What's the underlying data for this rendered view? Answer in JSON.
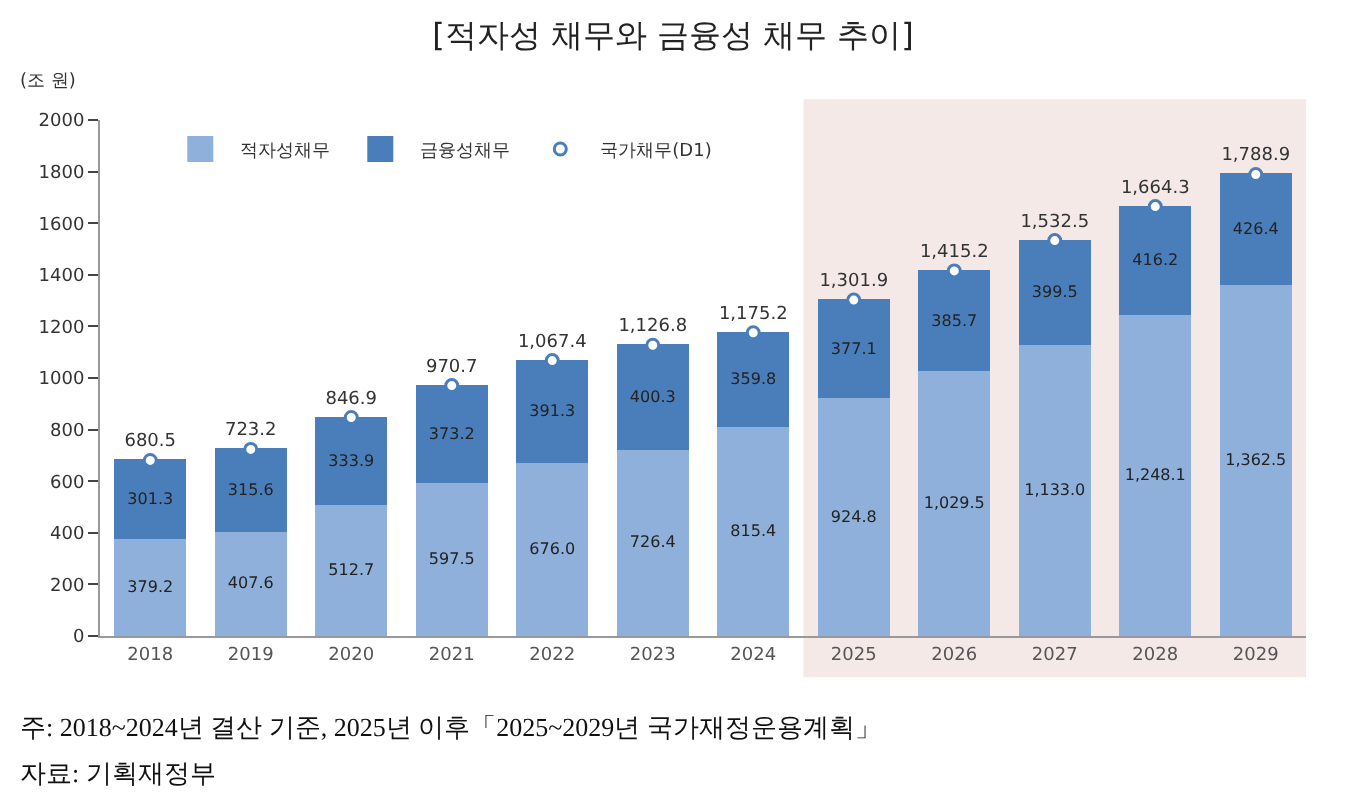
{
  "chart_data": {
    "type": "bar",
    "title": "[적자성 채무와 금융성 채무 추이]",
    "ylabel": "(조 원)",
    "categories": [
      "2018",
      "2019",
      "2020",
      "2021",
      "2022",
      "2023",
      "2024",
      "2025",
      "2026",
      "2027",
      "2028",
      "2029"
    ],
    "stacked": true,
    "series": [
      {
        "name": "적자성채무",
        "color": "#8fb0db",
        "values": [
          379.2,
          407.6,
          512.7,
          597.5,
          676.0,
          726.4,
          815.4,
          924.8,
          1029.5,
          1133.0,
          1248.1,
          1362.5
        ],
        "value_labels": [
          "379.2",
          "407.6",
          "512.7",
          "597.5",
          "676.0",
          "726.4",
          "815.4",
          "924.8",
          "1,029.5",
          "1,133.0",
          "1,248.1",
          "1,362.5"
        ]
      },
      {
        "name": "금융성채무",
        "color": "#4a7ebb",
        "values": [
          301.3,
          315.6,
          333.9,
          373.2,
          391.3,
          400.3,
          359.8,
          377.1,
          385.7,
          399.5,
          416.2,
          426.4
        ],
        "value_labels": [
          "301.3",
          "315.6",
          "333.9",
          "373.2",
          "391.3",
          "400.3",
          "359.8",
          "377.1",
          "385.7",
          "399.5",
          "416.2",
          "426.4"
        ]
      },
      {
        "name": "국가채무(D1)",
        "type": "scatter",
        "marker": "circle",
        "color": "#4a7ebb",
        "values": [
          680.5,
          723.2,
          846.9,
          970.7,
          1067.4,
          1126.8,
          1175.2,
          1301.9,
          1415.2,
          1532.5,
          1664.3,
          1788.9
        ],
        "value_labels": [
          "680.5",
          "723.2",
          "846.9",
          "970.7",
          "1,067.4",
          "1,126.8",
          "1,175.2",
          "1,301.9",
          "1,415.2",
          "1,532.5",
          "1,664.3",
          "1,788.9"
        ]
      }
    ],
    "ylim": [
      0,
      2000
    ],
    "yticks": [
      0,
      200,
      400,
      600,
      800,
      1000,
      1200,
      1400,
      1600,
      1800,
      2000
    ],
    "grid": false,
    "legend": "top left",
    "bands": [
      {
        "axis": "x",
        "from": "2025",
        "to": "2029",
        "color": "#f5e9e8"
      }
    ],
    "annotations": [
      "주: 2018~2024년 결산 기준, 2025년 이후「2025~2029년 국가재정운용계획」",
      "자료: 기획재정부"
    ]
  }
}
